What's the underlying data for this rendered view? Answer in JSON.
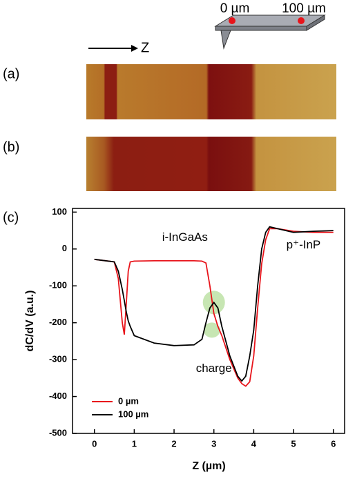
{
  "labels": {
    "probe_positions": [
      "0 µm",
      "100 µm"
    ],
    "direction": "Z",
    "panels": [
      "(a)",
      "(b)",
      "(c)"
    ]
  },
  "chart_data": {
    "type": "line",
    "ylabel": "dC/dV (a.u.)",
    "xlabel": "Z (µm)",
    "annotations": [
      "i-InGaAs",
      "p⁺-InP",
      "charge"
    ],
    "x": [
      0,
      0.5,
      0.6,
      0.7,
      0.75,
      0.8,
      0.85,
      0.9,
      1.0,
      1.5,
      2.0,
      2.5,
      2.7,
      2.8,
      2.9,
      3.0,
      3.1,
      3.2,
      3.4,
      3.6,
      3.7,
      3.8,
      3.9,
      4.0,
      4.1,
      4.2,
      4.3,
      4.4,
      4.6,
      5.0,
      5.5,
      6.0
    ],
    "series": [
      {
        "name": "0 µm",
        "color": "#e8141b",
        "values": [
          -28,
          -35,
          -80,
          -200,
          -232,
          -150,
          -60,
          -35,
          -33,
          -32,
          -32,
          -32,
          -33,
          -38,
          -100,
          -175,
          -210,
          -235,
          -300,
          -350,
          -365,
          -372,
          -360,
          -290,
          -160,
          -40,
          25,
          55,
          55,
          48,
          45,
          45
        ]
      },
      {
        "name": "100 µm",
        "color": "#000000",
        "values": [
          -28,
          -35,
          -60,
          -110,
          -140,
          -170,
          -195,
          -210,
          -235,
          -255,
          -262,
          -260,
          -245,
          -200,
          -160,
          -145,
          -160,
          -210,
          -290,
          -345,
          -358,
          -345,
          -290,
          -220,
          -100,
          0,
          45,
          60,
          55,
          45,
          48,
          50
        ]
      }
    ],
    "xlim": [
      -0.55,
      6.3
    ],
    "ylim": [
      -500,
      110
    ],
    "xticks": [
      0,
      1,
      2,
      3,
      4,
      5,
      6
    ],
    "yticks": [
      100,
      0,
      -100,
      -200,
      -300,
      -400,
      -500
    ],
    "legend": "lower left"
  }
}
